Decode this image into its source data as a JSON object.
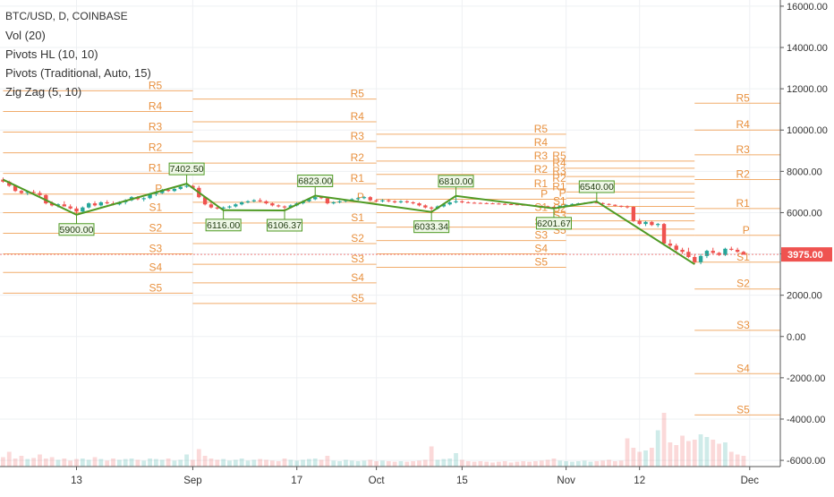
{
  "legend": {
    "symbol": "BTC/USD, D, COINBASE",
    "indicators": [
      "Vol (20)",
      "Pivots HL (10, 10)",
      "Pivots (Traditional, Auto, 15)",
      "Zig Zag (5, 10)"
    ]
  },
  "colors": {
    "up": "#26a69a",
    "down": "#ef5350",
    "pivot": "#f0a35b",
    "pivot_label": "#e8903e",
    "zigzag": "#4f9a24",
    "current": "#ef5350",
    "grid": "#eef0f3",
    "axis_text": "#333333"
  },
  "chart_data": {
    "type": "candlestick",
    "title": "BTC/USD, D, COINBASE",
    "y_axis": {
      "ticks": [
        "16000.00",
        "14000.00",
        "12000.00",
        "10000.00",
        "8000.00",
        "6000.00",
        "4000.00",
        "2000.00",
        "0.00",
        "-2000.00",
        "-4000.00",
        "-6000.00"
      ],
      "ylim": [
        -6300,
        16300
      ],
      "current_price": "3975.00"
    },
    "x_axis": {
      "ticks": [
        "13",
        "Sep",
        "17",
        "Oct",
        "15",
        "Nov",
        "12",
        "Dec"
      ],
      "tick_days": [
        12,
        31,
        48,
        61,
        75,
        92,
        104,
        122
      ],
      "xlim": [
        -0.5,
        127
      ]
    },
    "candles_note": "day index 0 = Aug 1; values in USD",
    "ohlc": [
      [
        7600,
        7700,
        7450,
        7500
      ],
      [
        7500,
        7550,
        7250,
        7300
      ],
      [
        7300,
        7350,
        7000,
        7050
      ],
      [
        7050,
        7100,
        6900,
        6950
      ],
      [
        6950,
        7050,
        6850,
        7000
      ],
      [
        7000,
        7100,
        6900,
        6950
      ],
      [
        6950,
        7050,
        6800,
        6850
      ],
      [
        6850,
        6900,
        6400,
        6450
      ],
      [
        6450,
        6550,
        6300,
        6350
      ],
      [
        6350,
        6450,
        6250,
        6400
      ],
      [
        6400,
        6550,
        6300,
        6300
      ],
      [
        6300,
        6400,
        6150,
        6200
      ],
      [
        6200,
        6300,
        5900,
        6050
      ],
      [
        6050,
        6300,
        6000,
        6250
      ],
      [
        6250,
        6500,
        6200,
        6450
      ],
      [
        6450,
        6550,
        6300,
        6350
      ],
      [
        6350,
        6550,
        6300,
        6500
      ],
      [
        6500,
        6600,
        6400,
        6450
      ],
      [
        6450,
        6550,
        6350,
        6400
      ],
      [
        6400,
        6550,
        6350,
        6500
      ],
      [
        6500,
        6650,
        6400,
        6600
      ],
      [
        6600,
        6800,
        6550,
        6750
      ],
      [
        6750,
        6800,
        6600,
        6650
      ],
      [
        6650,
        6750,
        6550,
        6700
      ],
      [
        6700,
        6950,
        6650,
        6900
      ],
      [
        6900,
        7000,
        6800,
        6950
      ],
      [
        6950,
        7150,
        6900,
        7100
      ],
      [
        7100,
        7200,
        7000,
        7050
      ],
      [
        7050,
        7200,
        7000,
        7150
      ],
      [
        7150,
        7300,
        7100,
        7250
      ],
      [
        7250,
        7402.5,
        7200,
        7300
      ],
      [
        7300,
        7350,
        7150,
        7200
      ],
      [
        7200,
        7300,
        6700,
        6750
      ],
      [
        6750,
        6800,
        6350,
        6400
      ],
      [
        6400,
        6500,
        6200,
        6250
      ],
      [
        6250,
        6350,
        6150,
        6200
      ],
      [
        6200,
        6300,
        6116,
        6250
      ],
      [
        6250,
        6350,
        6200,
        6300
      ],
      [
        6300,
        6450,
        6250,
        6400
      ],
      [
        6400,
        6550,
        6350,
        6500
      ],
      [
        6500,
        6600,
        6450,
        6550
      ],
      [
        6550,
        6650,
        6500,
        6600
      ],
      [
        6600,
        6700,
        6500,
        6550
      ],
      [
        6550,
        6600,
        6400,
        6450
      ],
      [
        6450,
        6500,
        6300,
        6350
      ],
      [
        6350,
        6400,
        6250,
        6300
      ],
      [
        6300,
        6350,
        6106.37,
        6250
      ],
      [
        6250,
        6400,
        6200,
        6350
      ],
      [
        6350,
        6500,
        6300,
        6450
      ],
      [
        6450,
        6600,
        6400,
        6550
      ],
      [
        6550,
        6700,
        6500,
        6650
      ],
      [
        6650,
        6823,
        6600,
        6750
      ],
      [
        6750,
        6800,
        6650,
        6700
      ],
      [
        6700,
        6750,
        6400,
        6450
      ],
      [
        6450,
        6550,
        6400,
        6500
      ],
      [
        6500,
        6600,
        6450,
        6550
      ],
      [
        6550,
        6650,
        6500,
        6600
      ],
      [
        6600,
        6700,
        6550,
        6650
      ],
      [
        6650,
        6750,
        6600,
        6700
      ],
      [
        6700,
        6800,
        6650,
        6750
      ],
      [
        6750,
        6800,
        6550,
        6600
      ],
      [
        6600,
        6650,
        6500,
        6550
      ],
      [
        6550,
        6650,
        6500,
        6600
      ],
      [
        6600,
        6650,
        6500,
        6550
      ],
      [
        6550,
        6600,
        6450,
        6500
      ],
      [
        6500,
        6600,
        6450,
        6550
      ],
      [
        6550,
        6600,
        6450,
        6500
      ],
      [
        6500,
        6550,
        6400,
        6450
      ],
      [
        6450,
        6500,
        6300,
        6350
      ],
      [
        6350,
        6400,
        6200,
        6250
      ],
      [
        6250,
        6300,
        6033.34,
        6200
      ],
      [
        6200,
        6350,
        6150,
        6300
      ],
      [
        6300,
        6450,
        6250,
        6400
      ],
      [
        6400,
        6550,
        6350,
        6500
      ],
      [
        6500,
        6810,
        6450,
        6550
      ],
      [
        6550,
        6600,
        6450,
        6500
      ],
      [
        6500,
        6550,
        6450,
        6480
      ],
      [
        6480,
        6520,
        6440,
        6470
      ],
      [
        6470,
        6500,
        6430,
        6460
      ],
      [
        6460,
        6490,
        6420,
        6450
      ],
      [
        6450,
        6480,
        6410,
        6440
      ],
      [
        6440,
        6470,
        6400,
        6420
      ],
      [
        6420,
        6460,
        6380,
        6410
      ],
      [
        6410,
        6450,
        6370,
        6400
      ],
      [
        6400,
        6430,
        6360,
        6380
      ],
      [
        6380,
        6420,
        6350,
        6370
      ],
      [
        6370,
        6400,
        6330,
        6350
      ],
      [
        6350,
        6380,
        6310,
        6330
      ],
      [
        6330,
        6360,
        6290,
        6310
      ],
      [
        6310,
        6340,
        6250,
        6280
      ],
      [
        6280,
        6300,
        6201.67,
        6250
      ],
      [
        6250,
        6350,
        6220,
        6330
      ],
      [
        6330,
        6400,
        6300,
        6380
      ],
      [
        6380,
        6450,
        6350,
        6420
      ],
      [
        6420,
        6480,
        6400,
        6450
      ],
      [
        6450,
        6500,
        6420,
        6470
      ],
      [
        6470,
        6520,
        6440,
        6490
      ],
      [
        6490,
        6540,
        6450,
        6460
      ],
      [
        6460,
        6500,
        6400,
        6420
      ],
      [
        6420,
        6450,
        6350,
        6380
      ],
      [
        6380,
        6400,
        6300,
        6330
      ],
      [
        6330,
        6350,
        6250,
        6300
      ],
      [
        6300,
        6350,
        6200,
        6280
      ],
      [
        6280,
        6300,
        5550,
        5600
      ],
      [
        5600,
        5700,
        5400,
        5450
      ],
      [
        5450,
        5600,
        5350,
        5550
      ],
      [
        5550,
        5600,
        5350,
        5400
      ],
      [
        5400,
        5500,
        5300,
        5450
      ],
      [
        5450,
        5500,
        4400,
        4500
      ],
      [
        4500,
        4700,
        4300,
        4400
      ],
      [
        4400,
        4500,
        4100,
        4200
      ],
      [
        4200,
        4300,
        4000,
        4100
      ],
      [
        4100,
        4300,
        3800,
        3850
      ],
      [
        3850,
        4000,
        3500,
        3600
      ],
      [
        3600,
        4000,
        3500,
        3900
      ],
      [
        3900,
        4200,
        3800,
        4150
      ],
      [
        4150,
        4300,
        4000,
        4050
      ],
      [
        4050,
        4100,
        3900,
        3950
      ],
      [
        3950,
        4300,
        3900,
        4250
      ],
      [
        4250,
        4350,
        4150,
        4200
      ],
      [
        4200,
        4300,
        4050,
        4100
      ],
      [
        4100,
        4150,
        3950,
        3975
      ]
    ],
    "volume": [
      0.35,
      0.55,
      0.3,
      0.4,
      0.28,
      0.32,
      0.45,
      0.3,
      0.35,
      0.25,
      0.3,
      0.22,
      0.28,
      0.3,
      0.25,
      0.35,
      0.28,
      0.22,
      0.3,
      0.25,
      0.28,
      0.3,
      0.25,
      0.22,
      0.3,
      0.28,
      0.25,
      0.3,
      0.22,
      0.25,
      0.45,
      0.25,
      0.65,
      0.4,
      0.3,
      0.25,
      0.28,
      0.22,
      0.25,
      0.3,
      0.22,
      0.25,
      0.28,
      0.25,
      0.22,
      0.2,
      0.3,
      0.25,
      0.22,
      0.25,
      0.28,
      0.3,
      0.25,
      0.4,
      0.22,
      0.2,
      0.25,
      0.22,
      0.2,
      0.22,
      0.25,
      0.2,
      0.22,
      0.2,
      0.18,
      0.2,
      0.18,
      0.2,
      0.22,
      0.25,
      0.75,
      0.25,
      0.28,
      0.3,
      0.5,
      0.25,
      0.2,
      0.18,
      0.2,
      0.18,
      0.15,
      0.18,
      0.2,
      0.15,
      0.18,
      0.2,
      0.18,
      0.2,
      0.22,
      0.25,
      0.3,
      0.22,
      0.2,
      0.18,
      0.2,
      0.22,
      0.18,
      0.2,
      0.22,
      0.25,
      0.2,
      0.22,
      1.05,
      0.7,
      0.55,
      0.6,
      0.7,
      1.35,
      2.0,
      0.9,
      0.8,
      1.15,
      0.95,
      1.0,
      1.2,
      1.1,
      1.0,
      0.85,
      0.9,
      0.55,
      0.45,
      0.4
    ],
    "zigzag": [
      [
        0,
        7600
      ],
      [
        12,
        5900
      ],
      [
        30,
        7402.5
      ],
      [
        36,
        6116
      ],
      [
        46,
        6106.37
      ],
      [
        51,
        6823
      ],
      [
        70,
        6033.34
      ],
      [
        74,
        6810
      ],
      [
        90,
        6201.67
      ],
      [
        97,
        6540
      ],
      [
        113,
        3500
      ]
    ],
    "zigzag_labels": [
      {
        "day": 12,
        "price": 5900,
        "text": "5900.00",
        "pos": "below"
      },
      {
        "day": 30,
        "price": 7402.5,
        "text": "7402.50",
        "pos": "above"
      },
      {
        "day": 36,
        "price": 6116,
        "text": "6116.00",
        "pos": "below"
      },
      {
        "day": 46,
        "price": 6106.37,
        "text": "6106.37",
        "pos": "below"
      },
      {
        "day": 51,
        "price": 6823,
        "text": "6823.00",
        "pos": "above"
      },
      {
        "day": 70,
        "price": 6033.34,
        "text": "6033.34",
        "pos": "below"
      },
      {
        "day": 74,
        "price": 6810,
        "text": "6810.00",
        "pos": "above"
      },
      {
        "day": 90,
        "price": 6201.67,
        "text": "6201.67",
        "pos": "below"
      },
      {
        "day": 97,
        "price": 6540,
        "text": "6540.00",
        "pos": "above"
      }
    ],
    "pivot_periods": [
      {
        "start": 0,
        "end": 31,
        "levels": {
          "R5": 11900,
          "R4": 10900,
          "R3": 9900,
          "R2": 8900,
          "R1": 7900,
          "P": 6900,
          "S1": 6000,
          "S2": 5000,
          "S3": 4000,
          "S4": 3100,
          "S5": 2100
        }
      },
      {
        "start": 31,
        "end": 61,
        "levels": {
          "R5": 11500,
          "R4": 10400,
          "R3": 9450,
          "R2": 8400,
          "R1": 7400,
          "P": 6500,
          "S1": 5500,
          "S2": 4500,
          "S3": 3500,
          "S4": 2600,
          "S5": 1600
        }
      },
      {
        "start": 61,
        "end": 92,
        "levels": {
          "R5": 9800,
          "R4": 9150,
          "R3": 8500,
          "R2": 7850,
          "R1": 7150,
          "P": 6650,
          "S1": 6000,
          "S2": 5300,
          "S3": 4650,
          "S4": 4000,
          "S5": 3350
        }
      },
      {
        "start": 92,
        "end": 113,
        "levels": {
          "R5": 8500,
          "R4": 8150,
          "R3": 7750,
          "R2": 7400,
          "R1": 7000,
          "P": 6700,
          "S1": 6300,
          "S2": 5950,
          "S3": 5600,
          "S4": 5200,
          "S5": 4900
        }
      },
      {
        "start": 113,
        "end": 127,
        "levels": {
          "R5": 11300,
          "R4": 10000,
          "R3": 8800,
          "R2": 7600,
          "R1": 6200,
          "P": 4900,
          "S1": 3600,
          "S2": 2300,
          "S3": 300,
          "S4": -1800,
          "S5": -3800
        }
      }
    ],
    "pivot_label_days": [
      26,
      59,
      89,
      92,
      122
    ]
  }
}
